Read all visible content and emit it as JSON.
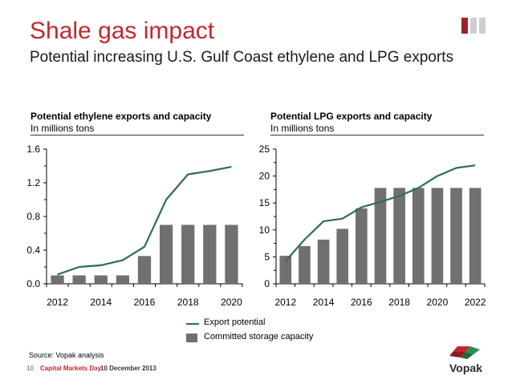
{
  "header": {
    "title": "Shale gas impact",
    "subtitle": "Potential increasing U.S. Gulf Coast ethylene and LPG exports"
  },
  "colors": {
    "accent": "#c0282f",
    "series_line": "#2e6b5e",
    "bars": "#707070"
  },
  "legend": {
    "line_label": "Export potential",
    "bar_label": "Committed storage capacity"
  },
  "footer": {
    "source": "Source: Vopak analysis",
    "page": "10",
    "event": "Capital Markets Day",
    "date": "10 December 2013",
    "logo_text": "Vopak"
  },
  "chart_data": [
    {
      "type": "bar",
      "title": "Potential ethylene exports and capacity",
      "subtitle": "In millions tons",
      "categories": [
        "2012",
        "2013",
        "2014",
        "2015",
        "2016",
        "2017",
        "2018",
        "2019",
        "2020"
      ],
      "x_tick_labels": [
        "2012",
        "2014",
        "2016",
        "2018",
        "2020"
      ],
      "ylim": [
        0,
        1.6
      ],
      "y_ticks": [
        "0.0",
        "0.4",
        "0.8",
        "1.2",
        "1.6"
      ],
      "series": [
        {
          "name": "Committed storage capacity",
          "kind": "bar",
          "values": [
            0.1,
            0.1,
            0.1,
            0.1,
            0.33,
            0.7,
            0.7,
            0.7,
            0.7
          ]
        },
        {
          "name": "Export potential",
          "kind": "line",
          "values": [
            0.11,
            0.2,
            0.22,
            0.28,
            0.44,
            1.0,
            1.3,
            1.34,
            1.39
          ]
        }
      ]
    },
    {
      "type": "bar",
      "title": "Potential LPG exports and capacity",
      "subtitle": "In millions tons",
      "categories": [
        "2012",
        "2013",
        "2014",
        "2015",
        "2016",
        "2017",
        "2018",
        "2019",
        "2020",
        "2021",
        "2022"
      ],
      "x_tick_labels": [
        "2012",
        "2014",
        "2016",
        "2018",
        "2020",
        "2022"
      ],
      "ylim": [
        0,
        25
      ],
      "y_ticks": [
        "0",
        "5",
        "10",
        "15",
        "20",
        "25"
      ],
      "series": [
        {
          "name": "Committed storage capacity",
          "kind": "bar",
          "values": [
            5.2,
            7.0,
            8.2,
            10.2,
            14.0,
            17.8,
            17.8,
            17.8,
            17.8,
            17.8,
            17.8
          ]
        },
        {
          "name": "Export potential",
          "kind": "line",
          "values": [
            4.2,
            8.2,
            11.6,
            12.1,
            14.2,
            15.2,
            16.3,
            17.8,
            20.0,
            21.5,
            22.0
          ]
        }
      ]
    }
  ]
}
